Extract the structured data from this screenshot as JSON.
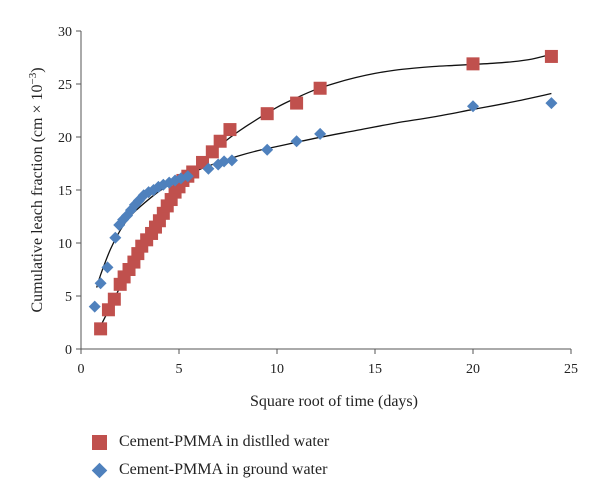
{
  "chart_data": {
    "type": "scatter",
    "xlabel": "Square root of time (days)",
    "ylabel": "Cumulative leach fraction (cm × 10",
    "ylabel_exponent": "−3",
    "ylabel_suffix": ")",
    "xlim": [
      0,
      25
    ],
    "ylim": [
      0,
      30
    ],
    "xticks": [
      0,
      5,
      10,
      15,
      20,
      25
    ],
    "yticks": [
      0,
      5,
      10,
      15,
      20,
      25,
      30
    ],
    "grid": false,
    "legend_position": "bottom",
    "series": [
      {
        "name": "Cement-PMMA in distlled water",
        "marker": "square",
        "color": "#c0504d",
        "x": [
          1.0,
          1.4,
          1.7,
          2.0,
          2.2,
          2.45,
          2.7,
          2.9,
          3.1,
          3.35,
          3.6,
          3.8,
          4.0,
          4.2,
          4.4,
          4.6,
          4.8,
          5.0,
          5.2,
          5.45,
          5.7,
          6.2,
          6.7,
          7.1,
          7.6,
          9.5,
          11.0,
          12.2,
          20.0,
          24.0
        ],
        "y": [
          1.9,
          3.7,
          4.7,
          6.1,
          6.8,
          7.5,
          8.2,
          9.0,
          9.7,
          10.3,
          10.9,
          11.5,
          12.1,
          12.8,
          13.5,
          14.1,
          14.8,
          15.3,
          15.9,
          16.3,
          16.7,
          17.6,
          18.6,
          19.6,
          20.7,
          22.2,
          23.2,
          24.6,
          26.9,
          27.6
        ]
      },
      {
        "name": "Cement-PMMA in ground water",
        "marker": "diamond",
        "color": "#4f81bd",
        "x": [
          0.7,
          1.0,
          1.35,
          1.75,
          1.95,
          2.15,
          2.35,
          2.55,
          2.75,
          2.95,
          3.2,
          3.45,
          3.7,
          3.95,
          4.2,
          4.5,
          4.8,
          5.1,
          5.45,
          6.5,
          7.0,
          7.3,
          7.7,
          9.5,
          11.0,
          12.2,
          20.0,
          24.0
        ],
        "y": [
          4.0,
          6.2,
          7.7,
          10.5,
          11.7,
          12.2,
          12.6,
          13.1,
          13.6,
          14.0,
          14.5,
          14.8,
          15.0,
          15.3,
          15.5,
          15.7,
          15.9,
          16.1,
          16.3,
          17.0,
          17.4,
          17.7,
          17.8,
          18.8,
          19.6,
          20.3,
          22.9,
          23.2
        ]
      }
    ],
    "trendlines": [
      {
        "series": "Cement-PMMA in distlled water",
        "x": [
          0.9,
          1.5,
          2.5,
          3.5,
          4.5,
          5.5,
          6.5,
          7.5,
          8.5,
          10,
          11,
          12,
          13,
          14,
          15,
          16,
          17,
          18,
          19,
          20,
          21,
          22,
          23,
          24
        ],
        "y": [
          1.8,
          4.0,
          7.7,
          10.9,
          13.9,
          16.3,
          18.2,
          19.8,
          21.1,
          22.8,
          23.7,
          24.5,
          25.1,
          25.6,
          26.0,
          26.3,
          26.5,
          26.65,
          26.75,
          26.85,
          26.95,
          27.1,
          27.35,
          27.8
        ]
      },
      {
        "series": "Cement-PMMA in ground water",
        "x": [
          0.8,
          1.0,
          1.5,
          2.0,
          2.5,
          3.0,
          4.0,
          5.0,
          6.0,
          7.0,
          8.0,
          9.0,
          10,
          12,
          14,
          16,
          18,
          20,
          22,
          24
        ],
        "y": [
          5.8,
          7.0,
          9.4,
          11.2,
          12.5,
          13.4,
          14.9,
          16.0,
          16.9,
          17.6,
          18.2,
          18.7,
          19.1,
          19.9,
          20.6,
          21.3,
          21.9,
          22.6,
          23.3,
          24.1
        ]
      }
    ]
  }
}
